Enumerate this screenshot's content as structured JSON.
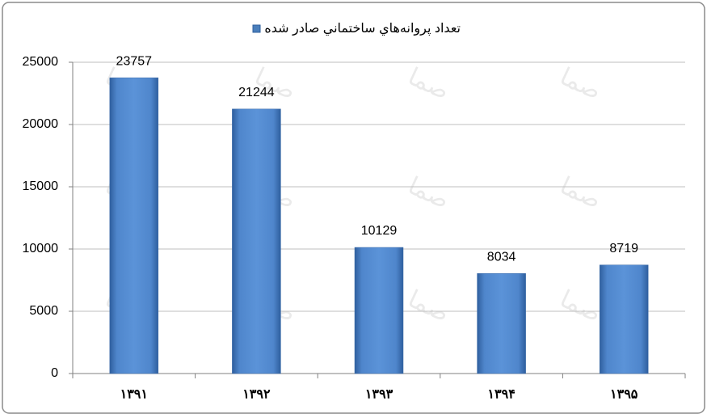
{
  "chart_data": {
    "type": "bar",
    "title": "تعداد پروانه‌هاي ساختماني صادر شده",
    "categories": [
      "۱۳۹۱",
      "۱۳۹۲",
      "۱۳۹۳",
      "۱۳۹۴",
      "۱۳۹۵"
    ],
    "values": [
      23757,
      21244,
      10129,
      8034,
      8719
    ],
    "color": "#4a7ebb",
    "ylim": [
      0,
      25000
    ],
    "yticks": [
      0,
      5000,
      10000,
      15000,
      20000,
      25000
    ],
    "grid": true,
    "legend": "top",
    "watermark": "صما"
  }
}
